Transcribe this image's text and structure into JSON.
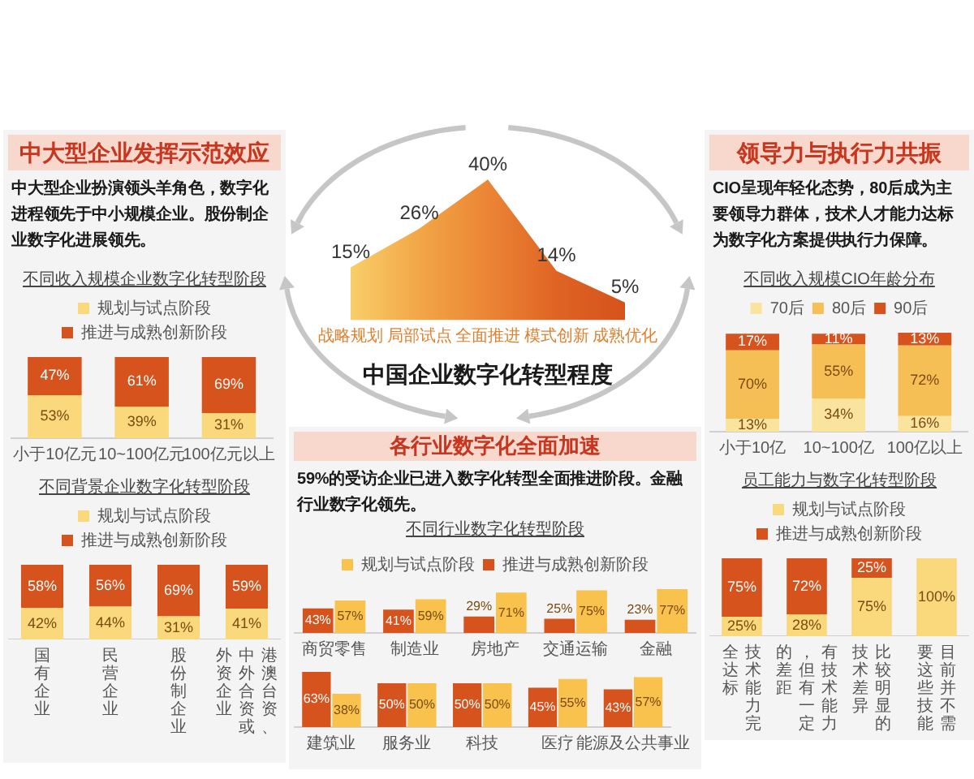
{
  "chart_data": [
    {
      "type": "other",
      "title": "中大型企业发挥示范效应",
      "subtitle": "中大型企业扮演领头羊角色，数字化进程领先于中小规模企业。股份制企业数字化进展领先。"
    },
    {
      "type": "bar",
      "title": "不同收入规模企业数字化转型阶段",
      "categories": [
        "小于10亿元",
        "10~100亿元",
        "100亿元以上"
      ],
      "stacked": true,
      "series": [
        {
          "name": "规划与试点阶段",
          "color": "#f9d97c",
          "values": [
            53,
            39,
            31
          ],
          "value_labels": [
            "53%",
            "39%",
            "31%"
          ]
        },
        {
          "name": "推进与成熟创新阶段",
          "color": "#d6531d",
          "values": [
            47,
            61,
            69
          ],
          "value_labels": [
            "47%",
            "61%",
            "69%"
          ]
        }
      ],
      "legend": "top",
      "tick_labels": "x"
    },
    {
      "type": "bar",
      "title": "不同背景企业数字化转型阶段",
      "categories": [
        "国有企业",
        "民营企业",
        "股份制企业",
        "港澳台资、中外合资或外资企业"
      ],
      "stacked": true,
      "series": [
        {
          "name": "规划与试点阶段",
          "color": "#f9d97c",
          "values": [
            42,
            44,
            31,
            41
          ],
          "value_labels": [
            "42%",
            "44%",
            "31%",
            "41%"
          ]
        },
        {
          "name": "推进与成熟创新阶段",
          "color": "#d6531d",
          "values": [
            58,
            56,
            69,
            59
          ],
          "value_labels": [
            "58%",
            "56%",
            "69%",
            "59%"
          ]
        }
      ],
      "legend": "top",
      "tick_labels": "x"
    },
    {
      "type": "area",
      "title": "中国企业数字化转型程度",
      "categories": [
        "战略规划",
        "局部试点",
        "全面推进",
        "模式创新",
        "成熟优化"
      ],
      "values": [
        15,
        26,
        40,
        14,
        5
      ],
      "colors": [
        "#f8cf6a",
        "#f2a647",
        "#eb8535",
        "#df6424",
        "#d6521c"
      ],
      "value_labels": [
        "15%",
        "26%",
        "40%",
        "14%",
        "5%"
      ],
      "tick_labels": "x"
    },
    {
      "type": "other",
      "title": "各行业数字化全面加速",
      "subtitle": "59%的受访企业已进入数字化转型全面推进阶段。金融行业数字化领先。"
    },
    {
      "type": "bar",
      "title": "不同行业数字化转型阶段",
      "categories": [
        "商贸零售",
        "制造业",
        "房地产",
        "交通运输",
        "金融"
      ],
      "series": [
        {
          "name": "推进与成熟创新阶段",
          "color": "#d6531d",
          "values": [
            43,
            41,
            29,
            25,
            23
          ],
          "value_labels": [
            "43%",
            "41%",
            "29%",
            "25%",
            "23%"
          ]
        },
        {
          "name": "规划与试点阶段",
          "color": "#f8c24c",
          "values": [
            57,
            59,
            71,
            75,
            77
          ],
          "value_labels": [
            "57%",
            "59%",
            "71%",
            "75%",
            "77%"
          ]
        }
      ],
      "legend": "top",
      "tick_labels": "x"
    },
    {
      "type": "bar",
      "categories": [
        "建筑业",
        "服务业",
        "科技",
        "医疗",
        "能源及公共事业"
      ],
      "series": [
        {
          "color": "#d6531d",
          "values": [
            63,
            50,
            50,
            45,
            43
          ],
          "value_labels": [
            "63%",
            "50%",
            "50%",
            "45%",
            "43%"
          ]
        },
        {
          "color": "#f8c24c",
          "values": [
            38,
            50,
            50,
            55,
            57
          ],
          "value_labels": [
            "38%",
            "50%",
            "50%",
            "55%",
            "57%"
          ]
        }
      ],
      "tick_labels": "x"
    },
    {
      "type": "other",
      "title": "领导力与执行力共振",
      "subtitle": "CIO呈现年轻化态势，80后成为主要领导力群体，技术人才能力达标为数字化方案提供执行力保障。"
    },
    {
      "type": "bar",
      "title": "不同收入规模CIO年龄分布",
      "categories": [
        "小于10亿",
        "10~100亿",
        "100亿以上"
      ],
      "stacked": true,
      "series": [
        {
          "name": "70后",
          "color": "#fae39c",
          "values": [
            13,
            34,
            16
          ],
          "value_labels": [
            "13%",
            "34%",
            "16%"
          ]
        },
        {
          "name": "80后",
          "color": "#f6bf55",
          "values": [
            70,
            55,
            72
          ],
          "value_labels": [
            "70%",
            "55%",
            "72%"
          ]
        },
        {
          "name": "90后",
          "color": "#d6531d",
          "values": [
            17,
            11,
            13
          ],
          "value_labels": [
            "17%",
            "11%",
            "13%"
          ]
        }
      ],
      "legend": "top",
      "tick_labels": "x"
    },
    {
      "type": "bar",
      "title": "员工能力与数字化转型阶段",
      "categories": [
        "技术能力完全达标",
        "有技术能力，但有一定的差距",
        "比较明显的技术差异",
        "目前并不需要这些技能"
      ],
      "stacked": true,
      "series": [
        {
          "name": "规划与试点阶段",
          "color": "#f9d97c",
          "values": [
            25,
            28,
            75,
            100
          ],
          "value_labels": [
            "25%",
            "28%",
            "75%",
            "100%"
          ]
        },
        {
          "name": "推进与成熟创新阶段",
          "color": "#d6531d",
          "values": [
            75,
            72,
            25,
            null
          ],
          "value_labels": [
            "75%",
            "72%",
            "25%",
            null
          ]
        }
      ],
      "legend": "top",
      "tick_labels": "x"
    }
  ]
}
